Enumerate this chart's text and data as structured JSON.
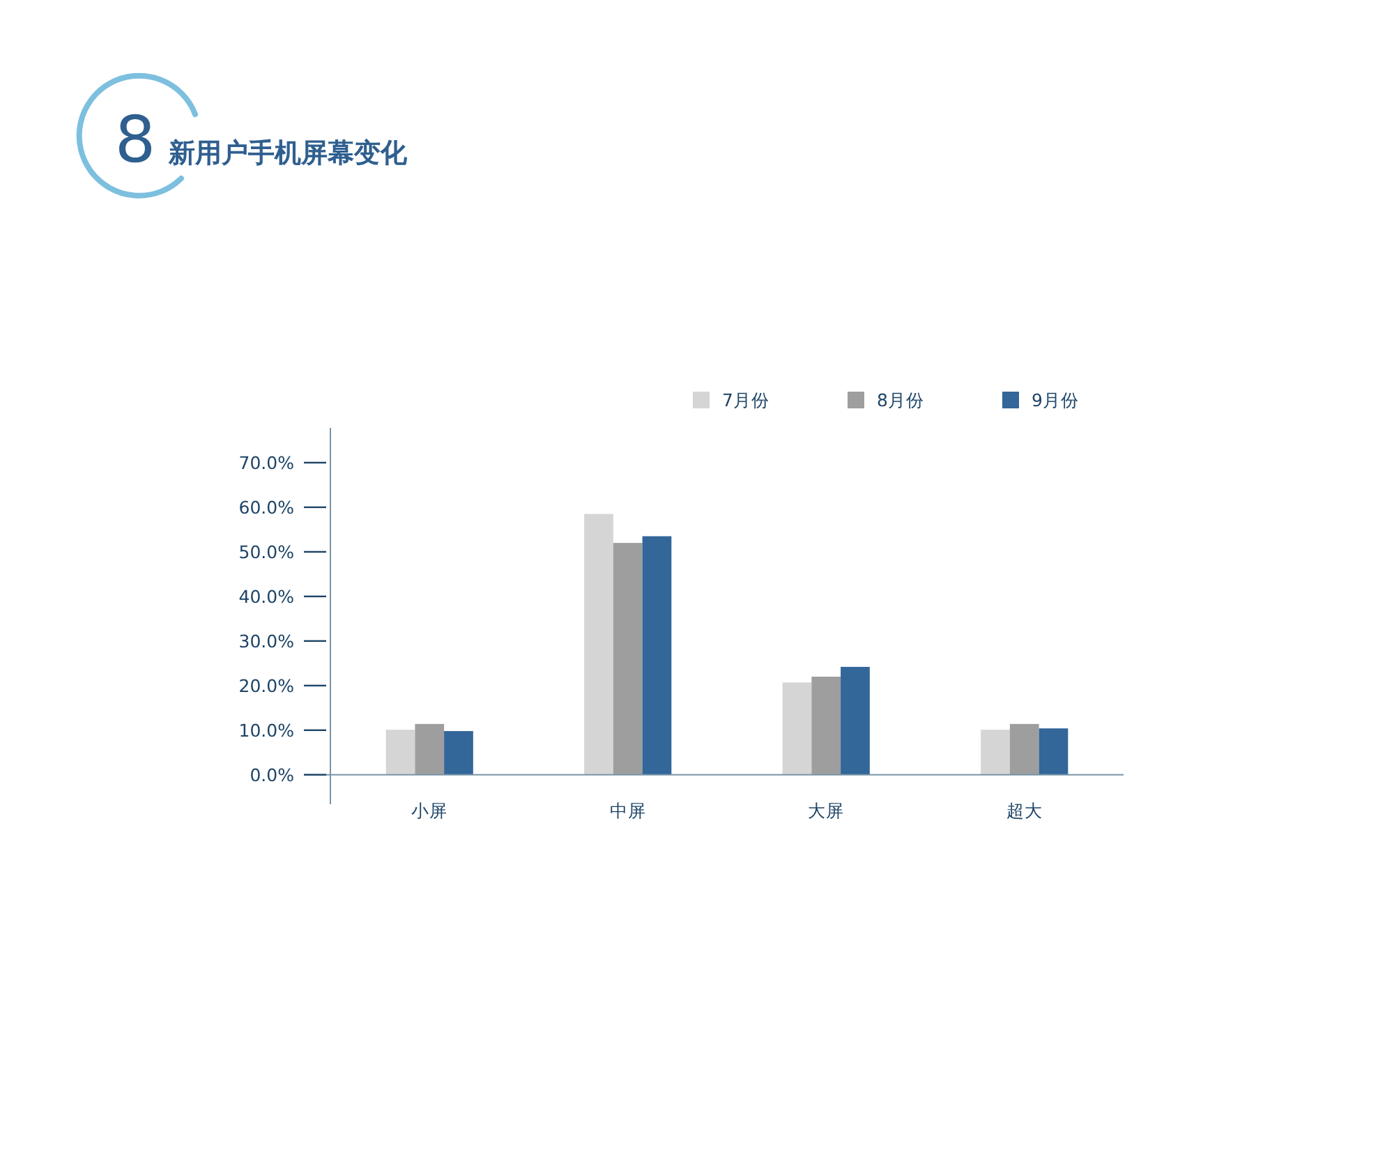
{
  "chart_data": {
    "type": "bar",
    "title": "新用户手机屏幕变化",
    "annotations": [
      "8"
    ],
    "categories": [
      "小屏",
      "中屏",
      "大屏",
      "超大"
    ],
    "series": [
      {
        "name": "7月份",
        "color": "#d6d5d6",
        "values": [
          10.1,
          58.5,
          20.7,
          10.1
        ]
      },
      {
        "name": "8月份",
        "color": "#9e9e9e",
        "values": [
          11.4,
          52.0,
          22.0,
          11.4
        ]
      },
      {
        "name": "9月份",
        "color": "#336699",
        "values": [
          9.8,
          53.5,
          24.2,
          10.4
        ]
      }
    ],
    "ylim": [
      -6.6,
      77.8
    ],
    "yticks": [
      {
        "value": 0,
        "label": "0.0%"
      },
      {
        "value": 10,
        "label": "10.0%"
      },
      {
        "value": 20,
        "label": "20.0%"
      },
      {
        "value": 30,
        "label": "30.0%"
      },
      {
        "value": 40,
        "label": "40.0%"
      },
      {
        "value": 50,
        "label": "50.0%"
      },
      {
        "value": 60,
        "label": "60.0%"
      },
      {
        "value": 70,
        "label": "70.0%"
      }
    ],
    "grid": false,
    "legend": "top right"
  }
}
